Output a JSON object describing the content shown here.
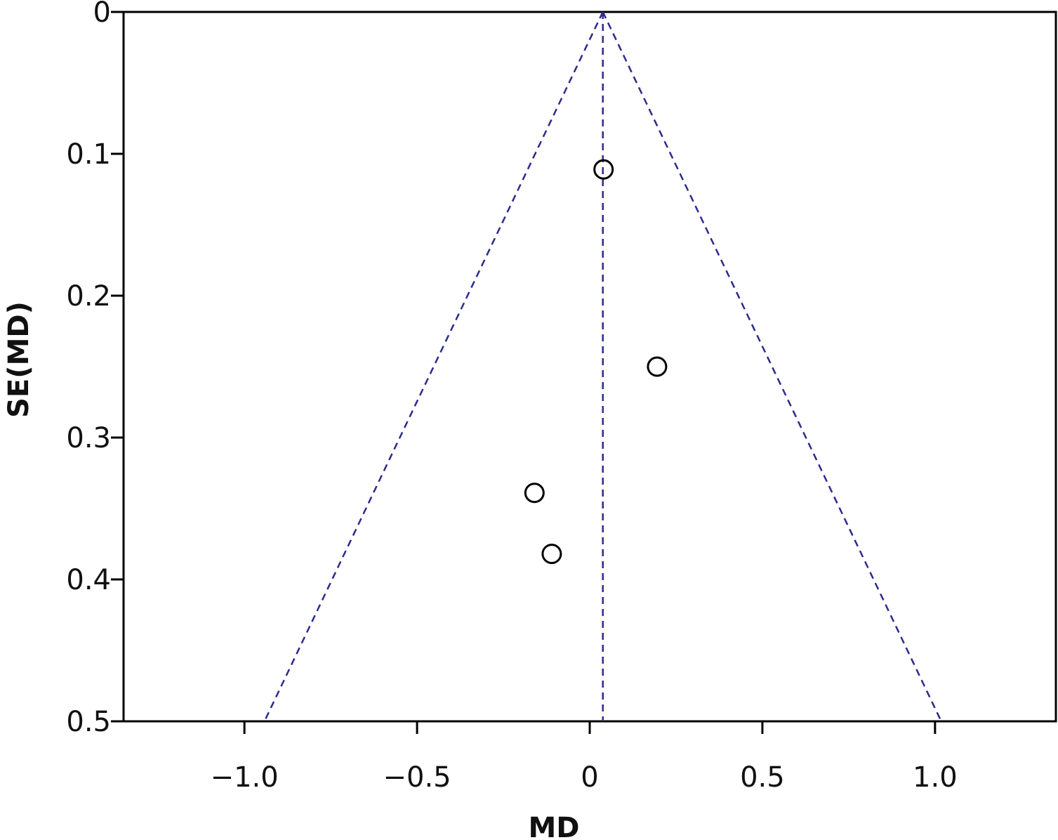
{
  "chart_data": {
    "type": "scatter",
    "subtype": "funnel-plot",
    "title": "",
    "xlabel": "MD",
    "ylabel": "SE(MD)",
    "xlim": [
      -1.35,
      1.35
    ],
    "ylim": [
      0,
      0.5
    ],
    "y_reversed": true,
    "grid": false,
    "x_ticks": [
      {
        "value": -1.0,
        "label": "−1.0"
      },
      {
        "value": -0.5,
        "label": "−0.5"
      },
      {
        "value": 0,
        "label": "0"
      },
      {
        "value": 0.5,
        "label": "0.5"
      },
      {
        "value": 1.0,
        "label": "1.0"
      }
    ],
    "y_ticks": [
      {
        "value": 0,
        "label": "0"
      },
      {
        "value": 0.1,
        "label": "0.1"
      },
      {
        "value": 0.2,
        "label": "0.2"
      },
      {
        "value": 0.3,
        "label": "0.3"
      },
      {
        "value": 0.4,
        "label": "0.4"
      },
      {
        "value": 0.5,
        "label": "0.5"
      }
    ],
    "points": [
      {
        "x": 0.04,
        "y": 0.111
      },
      {
        "x": 0.195,
        "y": 0.25
      },
      {
        "x": -0.16,
        "y": 0.339
      },
      {
        "x": -0.11,
        "y": 0.382
      }
    ],
    "pooled_estimate": 0.038,
    "funnel_limit_z": 1.96,
    "colors": {
      "axis": "#000000",
      "funnel": "#2b2b8c",
      "marker": "#000000"
    }
  }
}
